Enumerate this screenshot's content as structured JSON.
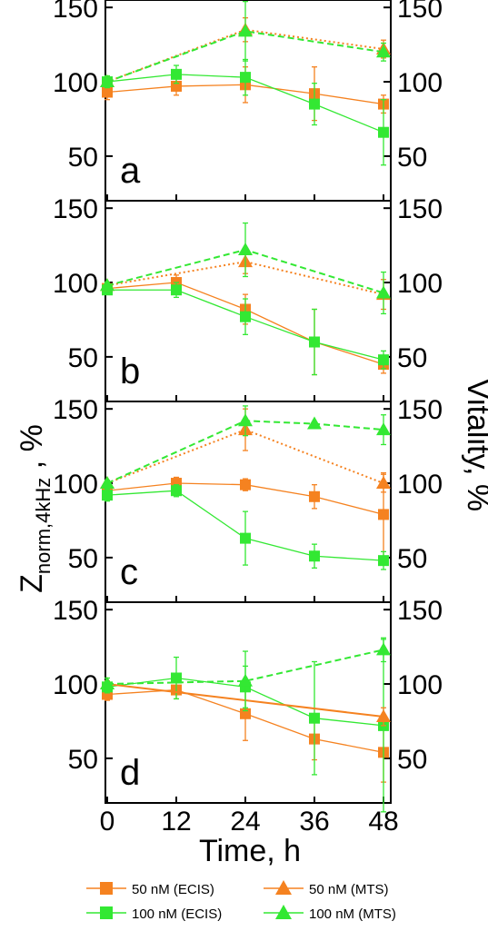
{
  "figure": {
    "xlabel": "Time, h",
    "ylabel_left_main": "Z",
    "ylabel_left_sub": "norm,4kHz",
    "ylabel_left_tail": " , %",
    "ylabel_right": "Vitality, %",
    "xticks": [
      "0",
      "12",
      "24",
      "36",
      "48"
    ],
    "yticks": [
      "50",
      "100",
      "150"
    ],
    "colors": {
      "orange": "#f58220",
      "green": "#33e833"
    },
    "legend": [
      {
        "label": "50 nM (ECIS)",
        "color": "#f58220",
        "marker": "square"
      },
      {
        "label": "50 nM (MTS)",
        "color": "#f58220",
        "marker": "triangle"
      },
      {
        "label": "100 nM (ECIS)",
        "color": "#33e833",
        "marker": "square"
      },
      {
        "label": "100 nM (MTS)",
        "color": "#33e833",
        "marker": "triangle"
      }
    ]
  },
  "chart_data": [
    {
      "type": "line",
      "panel_label": "a",
      "x": [
        0,
        12,
        24,
        36,
        48
      ],
      "ylim": [
        20,
        155
      ],
      "series": [
        {
          "name": "50 nM (ECIS)",
          "marker": "square",
          "color": "#f58220",
          "style": "solid",
          "values": [
            93,
            97,
            98,
            92,
            85
          ],
          "errors": [
            5,
            6,
            12,
            18,
            6
          ]
        },
        {
          "name": "100 nM (ECIS)",
          "marker": "square",
          "color": "#33e833",
          "style": "solid",
          "values": [
            100,
            105,
            103,
            85,
            66
          ],
          "errors": [
            4,
            6,
            12,
            14,
            22
          ]
        },
        {
          "name": "50 nM (MTS)",
          "marker": "triangle",
          "color": "#f58220",
          "style": "dotted",
          "x": [
            0,
            24,
            48
          ],
          "values": [
            100,
            135,
            122
          ],
          "errors": [
            2,
            8,
            6
          ]
        },
        {
          "name": "100 nM (MTS)",
          "marker": "triangle",
          "color": "#33e833",
          "style": "dashed",
          "x": [
            0,
            24,
            48
          ],
          "values": [
            100,
            134,
            120
          ],
          "errors": [
            2,
            20,
            6
          ]
        }
      ]
    },
    {
      "type": "line",
      "panel_label": "b",
      "x": [
        0,
        12,
        24,
        36,
        48
      ],
      "ylim": [
        20,
        155
      ],
      "series": [
        {
          "name": "50 nM (ECIS)",
          "marker": "square",
          "color": "#f58220",
          "style": "solid",
          "values": [
            96,
            100,
            82,
            60,
            45
          ],
          "errors": [
            3,
            5,
            10,
            22,
            6
          ]
        },
        {
          "name": "100 nM (ECIS)",
          "marker": "square",
          "color": "#33e833",
          "style": "solid",
          "values": [
            95,
            95,
            77,
            60,
            48
          ],
          "errors": [
            3,
            5,
            12,
            22,
            6
          ]
        },
        {
          "name": "50 nM (MTS)",
          "marker": "triangle",
          "color": "#f58220",
          "style": "dotted",
          "x": [
            0,
            24,
            48
          ],
          "values": [
            98,
            114,
            92
          ],
          "errors": [
            2,
            8,
            10
          ]
        },
        {
          "name": "100 nM (MTS)",
          "marker": "triangle",
          "color": "#33e833",
          "style": "dashed",
          "x": [
            0,
            24,
            48
          ],
          "values": [
            98,
            122,
            93
          ],
          "errors": [
            2,
            18,
            14
          ]
        }
      ]
    },
    {
      "type": "line",
      "panel_label": "c",
      "x": [
        0,
        12,
        24,
        36,
        48
      ],
      "ylim": [
        20,
        155
      ],
      "series": [
        {
          "name": "50 nM (ECIS)",
          "marker": "square",
          "color": "#f58220",
          "style": "solid",
          "values": [
            95,
            100,
            99,
            91,
            79
          ],
          "errors": [
            4,
            4,
            4,
            8,
            28
          ]
        },
        {
          "name": "100 nM (ECIS)",
          "marker": "square",
          "color": "#33e833",
          "style": "solid",
          "values": [
            92,
            95,
            63,
            51,
            48
          ],
          "errors": [
            4,
            4,
            18,
            8,
            6
          ]
        },
        {
          "name": "50 nM (MTS)",
          "marker": "triangle",
          "color": "#f58220",
          "style": "dotted",
          "x": [
            0,
            24,
            48
          ],
          "values": [
            100,
            136,
            100
          ],
          "errors": [
            2,
            14,
            6
          ]
        },
        {
          "name": "100 nM (MTS)",
          "marker": "triangle",
          "color": "#33e833",
          "style": "dashed",
          "x": [
            0,
            24,
            36,
            48
          ],
          "values": [
            100,
            142,
            140,
            136
          ],
          "errors": [
            2,
            10,
            0,
            10
          ]
        }
      ]
    },
    {
      "type": "line",
      "panel_label": "d",
      "x": [
        0,
        12,
        24,
        36,
        48
      ],
      "ylim": [
        20,
        155
      ],
      "series": [
        {
          "name": "50 nM (ECIS)",
          "marker": "square",
          "color": "#f58220",
          "style": "solid",
          "values": [
            93,
            96,
            80,
            63,
            54
          ],
          "errors": [
            4,
            6,
            18,
            14,
            20
          ]
        },
        {
          "name": "100 nM (ECIS)",
          "marker": "square",
          "color": "#33e833",
          "style": "solid",
          "values": [
            98,
            104,
            98,
            77,
            72
          ],
          "errors": [
            4,
            14,
            14,
            38,
            58
          ]
        },
        {
          "name": "50 nM (MTS)",
          "marker": "triangle",
          "color": "#f58220",
          "style": "solid",
          "x": [
            0,
            48
          ],
          "values": [
            100,
            78
          ],
          "errors": [
            2,
            6
          ]
        },
        {
          "name": "100 nM (MTS)",
          "marker": "triangle",
          "color": "#33e833",
          "style": "dashed",
          "x": [
            0,
            24,
            48
          ],
          "values": [
            100,
            102,
            123
          ],
          "errors": [
            4,
            20,
            8
          ]
        }
      ]
    }
  ]
}
